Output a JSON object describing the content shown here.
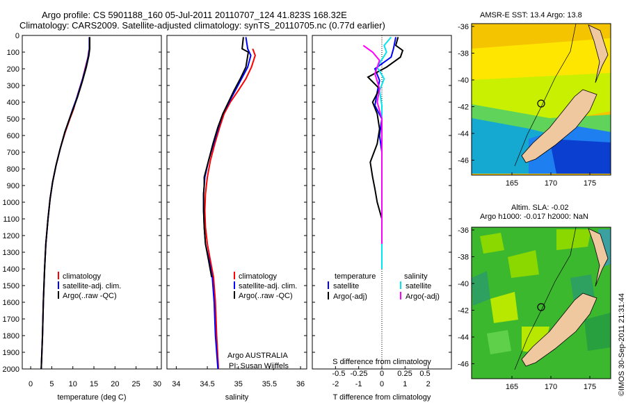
{
  "header": {
    "line1": "Argo profile: CS 5901188_160 05-Jul-2011 20110707_124 41.823S 168.32E",
    "line2": "Climatology: CARS2009. Satellite-adjusted climatology: synTS_20110705.nc (0.77d earlier)"
  },
  "colors": {
    "climatology": "#ff0000",
    "satellite": "#0000ff",
    "argo": "#000000",
    "sal_satellite": "#00e5ee",
    "sal_argo": "#ff00ff",
    "land": "#f0c8a0"
  },
  "chart_data": [
    {
      "type": "line",
      "panel": "temperature",
      "xlabel": "temperature (deg C)",
      "ylabel": "",
      "xlim": [
        -2,
        31
      ],
      "ylim": [
        2000,
        0
      ],
      "xticks": [
        "0",
        "5",
        "10",
        "15",
        "20",
        "25",
        "30"
      ],
      "yticks": [
        "0",
        "100",
        "200",
        "300",
        "400",
        "500",
        "600",
        "700",
        "800",
        "900",
        "1000",
        "1100",
        "1200",
        "1300",
        "1400",
        "1500",
        "1600",
        "1700",
        "1800",
        "1900",
        "2000"
      ],
      "legend": [
        "climatology",
        "satellite-adj. clim.",
        "Argo(..raw -QC)"
      ],
      "series": [
        {
          "name": "climatology",
          "color": "#ff0000",
          "points": [
            [
              13.8,
              90
            ],
            [
              13.6,
              130
            ],
            [
              13.0,
              190
            ],
            [
              12.3,
              260
            ],
            [
              11.2,
              350
            ],
            [
              10.2,
              440
            ],
            [
              9.3,
              500
            ],
            [
              8.2,
              580
            ],
            [
              7.0,
              680
            ],
            [
              6.0,
              780
            ],
            [
              5.2,
              880
            ],
            [
              4.6,
              980
            ],
            [
              4.1,
              1100
            ],
            [
              3.6,
              1250
            ],
            [
              3.3,
              1400
            ],
            [
              3.0,
              1600
            ],
            [
              2.8,
              1800
            ],
            [
              2.5,
              2000
            ]
          ]
        },
        {
          "name": "satellite-adj. clim.",
          "color": "#0000ff",
          "points": [
            [
              13.9,
              10
            ],
            [
              13.9,
              80
            ],
            [
              13.7,
              120
            ],
            [
              13.1,
              190
            ],
            [
              12.1,
              280
            ],
            [
              11.0,
              370
            ],
            [
              10.0,
              440
            ],
            [
              9.2,
              500
            ],
            [
              8.1,
              580
            ],
            [
              7.0,
              680
            ],
            [
              6.0,
              780
            ],
            [
              5.2,
              880
            ],
            [
              4.6,
              980
            ],
            [
              4.1,
              1100
            ],
            [
              3.6,
              1250
            ],
            [
              3.3,
              1400
            ],
            [
              3.0,
              1600
            ],
            [
              2.8,
              1800
            ],
            [
              2.5,
              2000
            ]
          ]
        },
        {
          "name": "Argo(..raw -QC)",
          "color": "#000000",
          "points": [
            [
              14.0,
              10
            ],
            [
              14.0,
              80
            ],
            [
              13.8,
              120
            ],
            [
              13.2,
              190
            ],
            [
              12.2,
              280
            ],
            [
              11.1,
              370
            ],
            [
              10.1,
              440
            ],
            [
              9.2,
              500
            ],
            [
              8.1,
              580
            ],
            [
              7.0,
              680
            ],
            [
              6.0,
              780
            ],
            [
              5.2,
              880
            ],
            [
              4.6,
              980
            ],
            [
              4.1,
              1100
            ],
            [
              3.6,
              1250
            ],
            [
              3.3,
              1400
            ],
            [
              3.0,
              1600
            ],
            [
              2.8,
              1800
            ],
            [
              2.5,
              2000
            ]
          ]
        }
      ]
    },
    {
      "type": "line",
      "panel": "salinity",
      "xlabel": "salinity",
      "xlim": [
        33.85,
        36.1
      ],
      "ylim": [
        2000,
        0
      ],
      "xticks": [
        "34",
        "34.5",
        "35",
        "35.5",
        "36"
      ],
      "legend": [
        "climatology",
        "satellite-adj. clim.",
        "Argo(..raw -QC)"
      ],
      "note1": "Argo AUSTRALIA",
      "note2": "PI: Susan Wijffels",
      "series": [
        {
          "name": "climatology",
          "color": "#ff0000",
          "points": [
            [
              35.23,
              80
            ],
            [
              35.27,
              120
            ],
            [
              35.21,
              190
            ],
            [
              35.12,
              260
            ],
            [
              35.0,
              330
            ],
            [
              34.87,
              400
            ],
            [
              34.77,
              470
            ],
            [
              34.7,
              550
            ],
            [
              34.62,
              650
            ],
            [
              34.55,
              750
            ],
            [
              34.5,
              850
            ],
            [
              34.47,
              950
            ],
            [
              34.46,
              1050
            ],
            [
              34.47,
              1150
            ],
            [
              34.5,
              1250
            ],
            [
              34.55,
              1350
            ],
            [
              34.6,
              1450
            ],
            [
              34.63,
              1600
            ],
            [
              34.65,
              1800
            ],
            [
              34.68,
              2000
            ]
          ]
        },
        {
          "name": "satellite-adj. clim.",
          "color": "#0000ff",
          "points": [
            [
              35.12,
              10
            ],
            [
              35.15,
              80
            ],
            [
              35.2,
              120
            ],
            [
              35.15,
              190
            ],
            [
              35.05,
              260
            ],
            [
              34.95,
              330
            ],
            [
              34.85,
              400
            ],
            [
              34.75,
              470
            ],
            [
              34.68,
              550
            ],
            [
              34.6,
              650
            ],
            [
              34.52,
              750
            ],
            [
              34.46,
              850
            ],
            [
              34.44,
              950
            ],
            [
              34.44,
              1050
            ],
            [
              34.45,
              1150
            ],
            [
              34.47,
              1250
            ],
            [
              34.53,
              1350
            ],
            [
              34.58,
              1450
            ],
            [
              34.61,
              1600
            ],
            [
              34.63,
              1800
            ],
            [
              34.67,
              2000
            ]
          ]
        },
        {
          "name": "Argo(..raw -QC)",
          "color": "#000000",
          "points": [
            [
              35.08,
              10
            ],
            [
              35.06,
              80
            ],
            [
              35.16,
              100
            ],
            [
              35.12,
              190
            ],
            [
              35.03,
              260
            ],
            [
              34.93,
              330
            ],
            [
              34.84,
              400
            ],
            [
              34.75,
              470
            ],
            [
              34.67,
              550
            ],
            [
              34.59,
              650
            ],
            [
              34.52,
              750
            ],
            [
              34.45,
              850
            ],
            [
              34.45,
              900
            ],
            [
              34.44,
              950
            ],
            [
              34.44,
              1050
            ],
            [
              34.45,
              1150
            ],
            [
              34.47,
              1250
            ],
            [
              34.52,
              1350
            ],
            [
              34.57,
              1450
            ]
          ]
        }
      ]
    },
    {
      "type": "line",
      "panel": "difference",
      "xlabel_top": "S difference from climatology",
      "xlabel_bottom": "T difference from climatology",
      "s_xticks": [
        "-0.5",
        "-0.25",
        "0",
        "0.25",
        "0.5"
      ],
      "t_xticks": [
        "-2",
        "-1",
        "0",
        "1",
        "2"
      ],
      "xlim": [
        -3,
        3
      ],
      "ylim": [
        2000,
        0
      ],
      "legend_headers": [
        "temperature",
        "salinity"
      ],
      "legend": [
        "satellite",
        "Argo(-adj)",
        "satellite",
        "Argo(-adj)"
      ],
      "series": [
        {
          "name": "satellite",
          "color": "#0000ff",
          "points": [
            [
              0.6,
              10
            ],
            [
              0.5,
              80
            ],
            [
              0.4,
              130
            ],
            [
              -0.3,
              200
            ],
            [
              -0.1,
              270
            ],
            [
              -0.2,
              340
            ],
            [
              -0.3,
              420
            ],
            [
              0.0,
              500
            ],
            [
              -0.1,
              600
            ],
            [
              0.0,
              700
            ],
            [
              0.0,
              800
            ],
            [
              0.0,
              900
            ],
            [
              0.0,
              1000
            ],
            [
              0.0,
              1100
            ],
            [
              0.0,
              1200
            ],
            [
              0.0,
              1300
            ],
            [
              0.0,
              1400
            ]
          ]
        },
        {
          "name": "Argo(-adj)",
          "color": "#000000",
          "points": [
            [
              0.7,
              10
            ],
            [
              0.6,
              60
            ],
            [
              0.9,
              90
            ],
            [
              0.8,
              130
            ],
            [
              0.2,
              190
            ],
            [
              -0.6,
              250
            ],
            [
              -0.1,
              320
            ],
            [
              -0.4,
              400
            ],
            [
              -0.2,
              470
            ],
            [
              -0.1,
              560
            ],
            [
              -0.2,
              650
            ],
            [
              -0.5,
              760
            ],
            [
              -0.4,
              850
            ],
            [
              -0.3,
              920
            ],
            [
              -0.2,
              1000
            ],
            [
              0.0,
              1100
            ],
            [
              0.0,
              1200
            ],
            [
              0.0,
              1300
            ],
            [
              0.0,
              1400
            ]
          ]
        },
        {
          "name": "satellite",
          "color": "#00e5ee",
          "points": [
            [
              0.4,
              10
            ],
            [
              0.1,
              60
            ],
            [
              0.2,
              100
            ],
            [
              -0.2,
              190
            ],
            [
              0.1,
              260
            ],
            [
              -0.1,
              330
            ],
            [
              0.0,
              420
            ],
            [
              0.0,
              520
            ],
            [
              0.0,
              650
            ],
            [
              0.0,
              800
            ],
            [
              0.0,
              950
            ],
            [
              0.0,
              1100
            ],
            [
              0.0,
              1250
            ],
            [
              0.0,
              1400
            ]
          ]
        },
        {
          "name": "Argo(-adj)",
          "color": "#ff00ff",
          "points": [
            [
              -0.8,
              60
            ],
            [
              -0.4,
              100
            ],
            [
              -0.1,
              150
            ],
            [
              -0.3,
              230
            ],
            [
              -0.1,
              320
            ],
            [
              -0.2,
              400
            ],
            [
              0.0,
              500
            ],
            [
              0.0,
              650
            ],
            [
              0.0,
              800
            ],
            [
              0.0,
              950
            ],
            [
              0.0,
              1100
            ],
            [
              0.0,
              1250
            ]
          ]
        }
      ]
    }
  ],
  "maps": {
    "sst_title": "AMSR-E SST: 13.4  Argo: 13.8",
    "sla_title1": "Altim. SLA: -0.02",
    "sla_title2": "Argo h1000: -0.017 h2000: NaN",
    "lat_ticks": [
      "-36",
      "-38",
      "-40",
      "-42",
      "-44",
      "-46"
    ],
    "lon_ticks": [
      "165",
      "170",
      "175"
    ]
  },
  "footer": {
    "credit": "©IMOS 30-Sep-2011 21:31:44"
  }
}
